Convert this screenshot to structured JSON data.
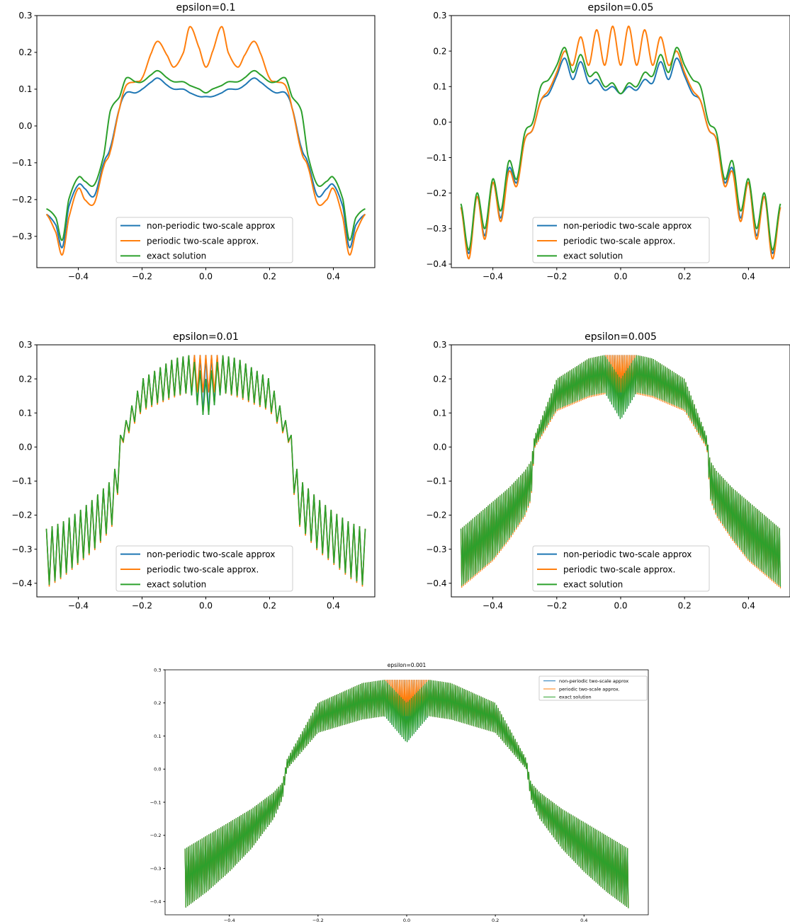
{
  "colors": {
    "blue": "#1f77b4",
    "orange": "#ff7f0e",
    "green": "#2ca02c",
    "axis": "#000000",
    "background": "#ffffff"
  },
  "chart_data": [
    {
      "type": "line",
      "title": "epsilon=0.1",
      "xlabel": "",
      "ylabel": "",
      "xlim": [
        -0.53,
        0.53
      ],
      "ylim": [
        -0.385,
        0.3
      ],
      "xticks": [
        -0.4,
        -0.2,
        0.0,
        0.2,
        0.4
      ],
      "xtick_labels": [
        "−0.4",
        "−0.2",
        "0.0",
        "0.2",
        "0.4"
      ],
      "yticks": [
        -0.3,
        -0.2,
        -0.1,
        0.0,
        0.1,
        0.2,
        0.3
      ],
      "ytick_labels": [
        "−0.3",
        "−0.2",
        "−0.1",
        "0.0",
        "0.1",
        "0.2",
        "0.3"
      ],
      "grid": false,
      "legend": "lower center",
      "x": [
        -0.5,
        -0.47,
        -0.45,
        -0.43,
        -0.4,
        -0.38,
        -0.35,
        -0.32,
        -0.3,
        -0.27,
        -0.25,
        -0.22,
        -0.2,
        -0.17,
        -0.15,
        -0.12,
        -0.1,
        -0.07,
        -0.05,
        -0.02,
        0.0,
        0.02,
        0.05,
        0.07,
        0.1,
        0.12,
        0.15,
        0.17,
        0.2,
        0.22,
        0.25,
        0.27,
        0.3,
        0.32,
        0.35,
        0.38,
        0.4,
        0.43,
        0.45,
        0.47,
        0.5
      ],
      "series": [
        {
          "name": "non-periodic two-scale approx",
          "color": "#1f77b4",
          "values": [
            -0.24,
            -0.27,
            -0.33,
            -0.22,
            -0.16,
            -0.17,
            -0.19,
            -0.1,
            -0.06,
            0.05,
            0.09,
            0.09,
            0.1,
            0.12,
            0.13,
            0.11,
            0.1,
            0.1,
            0.09,
            0.08,
            0.08,
            0.08,
            0.09,
            0.1,
            0.1,
            0.11,
            0.13,
            0.12,
            0.1,
            0.09,
            0.09,
            0.05,
            -0.06,
            -0.1,
            -0.19,
            -0.17,
            -0.16,
            -0.22,
            -0.33,
            -0.27,
            -0.24
          ]
        },
        {
          "name": "periodic two-scale approx.",
          "color": "#ff7f0e",
          "values": [
            -0.24,
            -0.29,
            -0.35,
            -0.25,
            -0.17,
            -0.2,
            -0.21,
            -0.11,
            -0.07,
            0.05,
            0.11,
            0.12,
            0.13,
            0.2,
            0.23,
            0.19,
            0.16,
            0.2,
            0.27,
            0.21,
            0.16,
            0.2,
            0.27,
            0.2,
            0.16,
            0.19,
            0.23,
            0.2,
            0.13,
            0.12,
            0.11,
            0.05,
            -0.07,
            -0.11,
            -0.21,
            -0.2,
            -0.17,
            -0.25,
            -0.35,
            -0.29,
            -0.24
          ]
        },
        {
          "name": "exact solution",
          "color": "#2ca02c",
          "values": [
            -0.225,
            -0.25,
            -0.31,
            -0.2,
            -0.14,
            -0.15,
            -0.16,
            -0.08,
            0.04,
            0.08,
            0.13,
            0.12,
            0.12,
            0.14,
            0.15,
            0.13,
            0.12,
            0.12,
            0.11,
            0.1,
            0.09,
            0.1,
            0.11,
            0.12,
            0.12,
            0.13,
            0.15,
            0.14,
            0.12,
            0.12,
            0.13,
            0.08,
            0.04,
            -0.08,
            -0.16,
            -0.15,
            -0.14,
            -0.2,
            -0.31,
            -0.25,
            -0.225
          ]
        }
      ]
    },
    {
      "type": "line",
      "title": "epsilon=0.05",
      "xlabel": "",
      "ylabel": "",
      "xlim": [
        -0.53,
        0.53
      ],
      "ylim": [
        -0.41,
        0.3
      ],
      "xticks": [
        -0.4,
        -0.2,
        0.0,
        0.2,
        0.4
      ],
      "xtick_labels": [
        "−0.4",
        "−0.2",
        "0.0",
        "0.2",
        "0.4"
      ],
      "yticks": [
        -0.4,
        -0.3,
        -0.2,
        -0.1,
        0.0,
        0.1,
        0.2,
        0.3
      ],
      "ytick_labels": [
        "−0.4",
        "−0.3",
        "−0.2",
        "−0.1",
        "0.0",
        "0.1",
        "0.2",
        "0.3"
      ],
      "grid": false,
      "legend": "lower center",
      "x": [
        -0.5,
        -0.475,
        -0.45,
        -0.425,
        -0.4,
        -0.375,
        -0.35,
        -0.325,
        -0.3,
        -0.275,
        -0.25,
        -0.225,
        -0.2,
        -0.175,
        -0.15,
        -0.125,
        -0.1,
        -0.075,
        -0.05,
        -0.025,
        0.0,
        0.025,
        0.05,
        0.075,
        0.1,
        0.125,
        0.15,
        0.175,
        0.2,
        0.225,
        0.25,
        0.275,
        0.3,
        0.325,
        0.35,
        0.375,
        0.4,
        0.425,
        0.45,
        0.475,
        0.5
      ],
      "series": [
        {
          "name": "non-periodic two-scale approx",
          "color": "#1f77b4",
          "values": [
            -0.24,
            -0.37,
            -0.21,
            -0.32,
            -0.17,
            -0.27,
            -0.13,
            -0.17,
            -0.05,
            -0.02,
            0.06,
            0.08,
            0.13,
            0.18,
            0.12,
            0.17,
            0.11,
            0.12,
            0.09,
            0.1,
            0.08,
            0.1,
            0.09,
            0.12,
            0.11,
            0.17,
            0.12,
            0.18,
            0.13,
            0.08,
            0.06,
            -0.02,
            -0.05,
            -0.17,
            -0.13,
            -0.27,
            -0.17,
            -0.32,
            -0.21,
            -0.37,
            -0.24
          ]
        },
        {
          "name": "periodic two-scale approx.",
          "color": "#ff7f0e",
          "values": [
            -0.24,
            -0.385,
            -0.21,
            -0.33,
            -0.17,
            -0.28,
            -0.14,
            -0.18,
            -0.05,
            -0.02,
            0.06,
            0.09,
            0.14,
            0.2,
            0.16,
            0.24,
            0.16,
            0.26,
            0.16,
            0.27,
            0.16,
            0.27,
            0.16,
            0.26,
            0.16,
            0.24,
            0.16,
            0.2,
            0.14,
            0.09,
            0.06,
            -0.02,
            -0.05,
            -0.18,
            -0.14,
            -0.28,
            -0.17,
            -0.33,
            -0.21,
            -0.385,
            -0.24
          ]
        },
        {
          "name": "exact solution",
          "color": "#2ca02c",
          "values": [
            -0.23,
            -0.36,
            -0.2,
            -0.3,
            -0.16,
            -0.25,
            -0.11,
            -0.16,
            -0.03,
            0.0,
            0.1,
            0.12,
            0.16,
            0.21,
            0.14,
            0.19,
            0.13,
            0.14,
            0.1,
            0.11,
            0.08,
            0.11,
            0.1,
            0.14,
            0.13,
            0.19,
            0.14,
            0.21,
            0.16,
            0.12,
            0.1,
            0.0,
            -0.03,
            -0.16,
            -0.11,
            -0.25,
            -0.16,
            -0.3,
            -0.2,
            -0.36,
            -0.23
          ]
        }
      ]
    },
    {
      "type": "line",
      "title": "epsilon=0.01",
      "xlabel": "",
      "ylabel": "",
      "xlim": [
        -0.53,
        0.53
      ],
      "ylim": [
        -0.44,
        0.3
      ],
      "xticks": [
        -0.4,
        -0.2,
        0.0,
        0.2,
        0.4
      ],
      "xtick_labels": [
        "−0.4",
        "−0.2",
        "0.0",
        "0.2",
        "0.4"
      ],
      "yticks": [
        -0.4,
        -0.3,
        -0.2,
        -0.1,
        0.0,
        0.1,
        0.2,
        0.3
      ],
      "ytick_labels": [
        "−0.4",
        "−0.3",
        "−0.2",
        "−0.1",
        "0.0",
        "0.1",
        "0.2",
        "0.3"
      ],
      "grid": false,
      "legend": "lower center",
      "x": [
        -0.5,
        -0.45,
        -0.4,
        -0.35,
        -0.3,
        -0.28,
        -0.27,
        -0.2,
        -0.1,
        -0.05,
        0.0,
        0.05,
        0.1,
        0.2,
        0.27,
        0.28,
        0.3,
        0.35,
        0.4,
        0.45,
        0.5
      ],
      "series": [
        {
          "name": "non-periodic two-scale approx",
          "color": "#1f77b4",
          "upper": [
            -0.24,
            -0.22,
            -0.19,
            -0.15,
            -0.1,
            -0.05,
            0.03,
            0.2,
            0.26,
            0.27,
            0.27,
            0.27,
            0.26,
            0.2,
            0.03,
            -0.05,
            -0.1,
            -0.15,
            -0.19,
            -0.22,
            -0.24
          ],
          "lower": [
            -0.41,
            -0.38,
            -0.34,
            -0.3,
            -0.24,
            -0.2,
            0.0,
            0.11,
            0.15,
            0.16,
            0.08,
            0.16,
            0.15,
            0.11,
            0.0,
            -0.2,
            -0.24,
            -0.3,
            -0.34,
            -0.38,
            -0.41
          ]
        },
        {
          "name": "periodic two-scale approx.",
          "color": "#ff7f0e",
          "upper": [
            -0.24,
            -0.22,
            -0.19,
            -0.15,
            -0.1,
            -0.05,
            0.03,
            0.2,
            0.26,
            0.27,
            0.27,
            0.27,
            0.26,
            0.2,
            0.03,
            -0.05,
            -0.1,
            -0.15,
            -0.19,
            -0.22,
            -0.24
          ],
          "lower": [
            -0.415,
            -0.385,
            -0.345,
            -0.305,
            -0.245,
            -0.205,
            -0.005,
            0.105,
            0.145,
            0.16,
            0.16,
            0.16,
            0.145,
            0.105,
            -0.005,
            -0.205,
            -0.245,
            -0.305,
            -0.345,
            -0.385,
            -0.415
          ]
        },
        {
          "name": "exact solution",
          "color": "#2ca02c",
          "upper": [
            -0.24,
            -0.22,
            -0.19,
            -0.15,
            -0.1,
            -0.05,
            0.03,
            0.2,
            0.26,
            0.27,
            0.2,
            0.27,
            0.26,
            0.2,
            0.03,
            -0.05,
            -0.1,
            -0.15,
            -0.19,
            -0.22,
            -0.24
          ],
          "lower": [
            -0.41,
            -0.38,
            -0.34,
            -0.3,
            -0.24,
            -0.2,
            0.0,
            0.11,
            0.15,
            0.16,
            0.08,
            0.16,
            0.15,
            0.11,
            0.0,
            -0.2,
            -0.24,
            -0.3,
            -0.34,
            -0.38,
            -0.41
          ]
        }
      ]
    },
    {
      "type": "line",
      "title": "epsilon=0.005",
      "xlabel": "",
      "ylabel": "",
      "xlim": [
        -0.53,
        0.53
      ],
      "ylim": [
        -0.44,
        0.3
      ],
      "xticks": [
        -0.4,
        -0.2,
        0.0,
        0.2,
        0.4
      ],
      "xtick_labels": [
        "−0.4",
        "−0.2",
        "0.0",
        "0.2",
        "0.4"
      ],
      "yticks": [
        -0.4,
        -0.3,
        -0.2,
        -0.1,
        0.0,
        0.1,
        0.2,
        0.3
      ],
      "ytick_labels": [
        "−0.4",
        "−0.3",
        "−0.2",
        "−0.1",
        "0.0",
        "0.1",
        "0.2",
        "0.3"
      ],
      "grid": false,
      "legend": "lower center",
      "x": [
        -0.5,
        -0.45,
        -0.4,
        -0.35,
        -0.3,
        -0.28,
        -0.27,
        -0.2,
        -0.1,
        -0.05,
        0.0,
        0.05,
        0.1,
        0.2,
        0.27,
        0.28,
        0.3,
        0.35,
        0.4,
        0.45,
        0.5
      ],
      "series": [
        {
          "name": "non-periodic two-scale approx",
          "color": "#1f77b4",
          "upper": [
            -0.24,
            -0.2,
            -0.16,
            -0.12,
            -0.07,
            -0.04,
            0.03,
            0.2,
            0.26,
            0.27,
            0.27,
            0.27,
            0.26,
            0.2,
            0.03,
            -0.04,
            -0.07,
            -0.12,
            -0.16,
            -0.2,
            -0.24
          ],
          "lower": [
            -0.41,
            -0.37,
            -0.33,
            -0.27,
            -0.2,
            -0.15,
            0.0,
            0.11,
            0.15,
            0.16,
            0.08,
            0.16,
            0.15,
            0.11,
            0.0,
            -0.15,
            -0.2,
            -0.27,
            -0.33,
            -0.37,
            -0.41
          ]
        },
        {
          "name": "periodic two-scale approx.",
          "color": "#ff7f0e",
          "upper": [
            -0.24,
            -0.2,
            -0.16,
            -0.12,
            -0.07,
            -0.04,
            0.03,
            0.2,
            0.26,
            0.27,
            0.27,
            0.27,
            0.26,
            0.2,
            0.03,
            -0.04,
            -0.07,
            -0.12,
            -0.16,
            -0.2,
            -0.24
          ],
          "lower": [
            -0.415,
            -0.375,
            -0.335,
            -0.275,
            -0.205,
            -0.155,
            -0.005,
            0.105,
            0.145,
            0.155,
            0.16,
            0.155,
            0.145,
            0.105,
            -0.005,
            -0.155,
            -0.205,
            -0.275,
            -0.335,
            -0.375,
            -0.415
          ]
        },
        {
          "name": "exact solution",
          "color": "#2ca02c",
          "upper": [
            -0.24,
            -0.2,
            -0.16,
            -0.12,
            -0.07,
            -0.04,
            0.03,
            0.2,
            0.26,
            0.27,
            0.2,
            0.27,
            0.26,
            0.2,
            0.03,
            -0.04,
            -0.07,
            -0.12,
            -0.16,
            -0.2,
            -0.24
          ],
          "lower": [
            -0.41,
            -0.37,
            -0.33,
            -0.27,
            -0.2,
            -0.15,
            0.0,
            0.11,
            0.15,
            0.16,
            0.08,
            0.16,
            0.15,
            0.11,
            0.0,
            -0.15,
            -0.2,
            -0.27,
            -0.33,
            -0.37,
            -0.41
          ]
        }
      ]
    },
    {
      "type": "line",
      "title": "epsilon=0.001",
      "xlabel": "",
      "ylabel": "",
      "xlim": [
        -0.545,
        0.545
      ],
      "ylim": [
        -0.44,
        0.3
      ],
      "xticks": [
        -0.4,
        -0.2,
        0.0,
        0.2,
        0.4
      ],
      "xtick_labels": [
        "−0.4",
        "−0.2",
        "0.0",
        "0.2",
        "0.4"
      ],
      "yticks": [
        -0.4,
        -0.3,
        -0.2,
        -0.1,
        0.0,
        0.1,
        0.2,
        0.3
      ],
      "ytick_labels": [
        "−0.4",
        "−0.3",
        "−0.2",
        "−0.1",
        "0.0",
        "0.1",
        "0.2",
        "0.3"
      ],
      "grid": false,
      "legend": "upper right",
      "x": [
        -0.5,
        -0.45,
        -0.4,
        -0.35,
        -0.3,
        -0.28,
        -0.27,
        -0.2,
        -0.1,
        -0.05,
        0.0,
        0.05,
        0.1,
        0.2,
        0.27,
        0.28,
        0.3,
        0.35,
        0.4,
        0.45,
        0.5
      ],
      "series": [
        {
          "name": "non-periodic two-scale approx",
          "color": "#1f77b4",
          "upper": [
            -0.24,
            -0.2,
            -0.16,
            -0.12,
            -0.07,
            -0.04,
            0.03,
            0.2,
            0.26,
            0.27,
            0.27,
            0.27,
            0.26,
            0.2,
            0.03,
            -0.04,
            -0.07,
            -0.12,
            -0.16,
            -0.2,
            -0.24
          ],
          "lower": [
            -0.42,
            -0.37,
            -0.31,
            -0.24,
            -0.15,
            -0.09,
            0.0,
            0.11,
            0.15,
            0.16,
            0.08,
            0.16,
            0.15,
            0.11,
            0.0,
            -0.09,
            -0.15,
            -0.24,
            -0.31,
            -0.37,
            -0.42
          ]
        },
        {
          "name": "periodic two-scale approx.",
          "color": "#ff7f0e",
          "upper": [
            -0.24,
            -0.2,
            -0.16,
            -0.12,
            -0.07,
            -0.04,
            0.03,
            0.2,
            0.26,
            0.27,
            0.27,
            0.27,
            0.26,
            0.2,
            0.03,
            -0.04,
            -0.07,
            -0.12,
            -0.16,
            -0.2,
            -0.24
          ],
          "lower": [
            -0.42,
            -0.37,
            -0.31,
            -0.24,
            -0.15,
            -0.09,
            0.0,
            0.11,
            0.15,
            0.16,
            0.16,
            0.16,
            0.15,
            0.11,
            0.0,
            -0.09,
            -0.15,
            -0.24,
            -0.31,
            -0.37,
            -0.42
          ]
        },
        {
          "name": "exact solution",
          "color": "#2ca02c",
          "upper": [
            -0.24,
            -0.2,
            -0.16,
            -0.12,
            -0.07,
            -0.04,
            0.03,
            0.2,
            0.26,
            0.27,
            0.2,
            0.27,
            0.26,
            0.2,
            0.03,
            -0.04,
            -0.07,
            -0.12,
            -0.16,
            -0.2,
            -0.24
          ],
          "lower": [
            -0.42,
            -0.37,
            -0.31,
            -0.24,
            -0.15,
            -0.09,
            0.0,
            0.11,
            0.15,
            0.16,
            0.08,
            0.16,
            0.15,
            0.11,
            0.0,
            -0.09,
            -0.15,
            -0.24,
            -0.31,
            -0.37,
            -0.42
          ]
        }
      ]
    }
  ]
}
